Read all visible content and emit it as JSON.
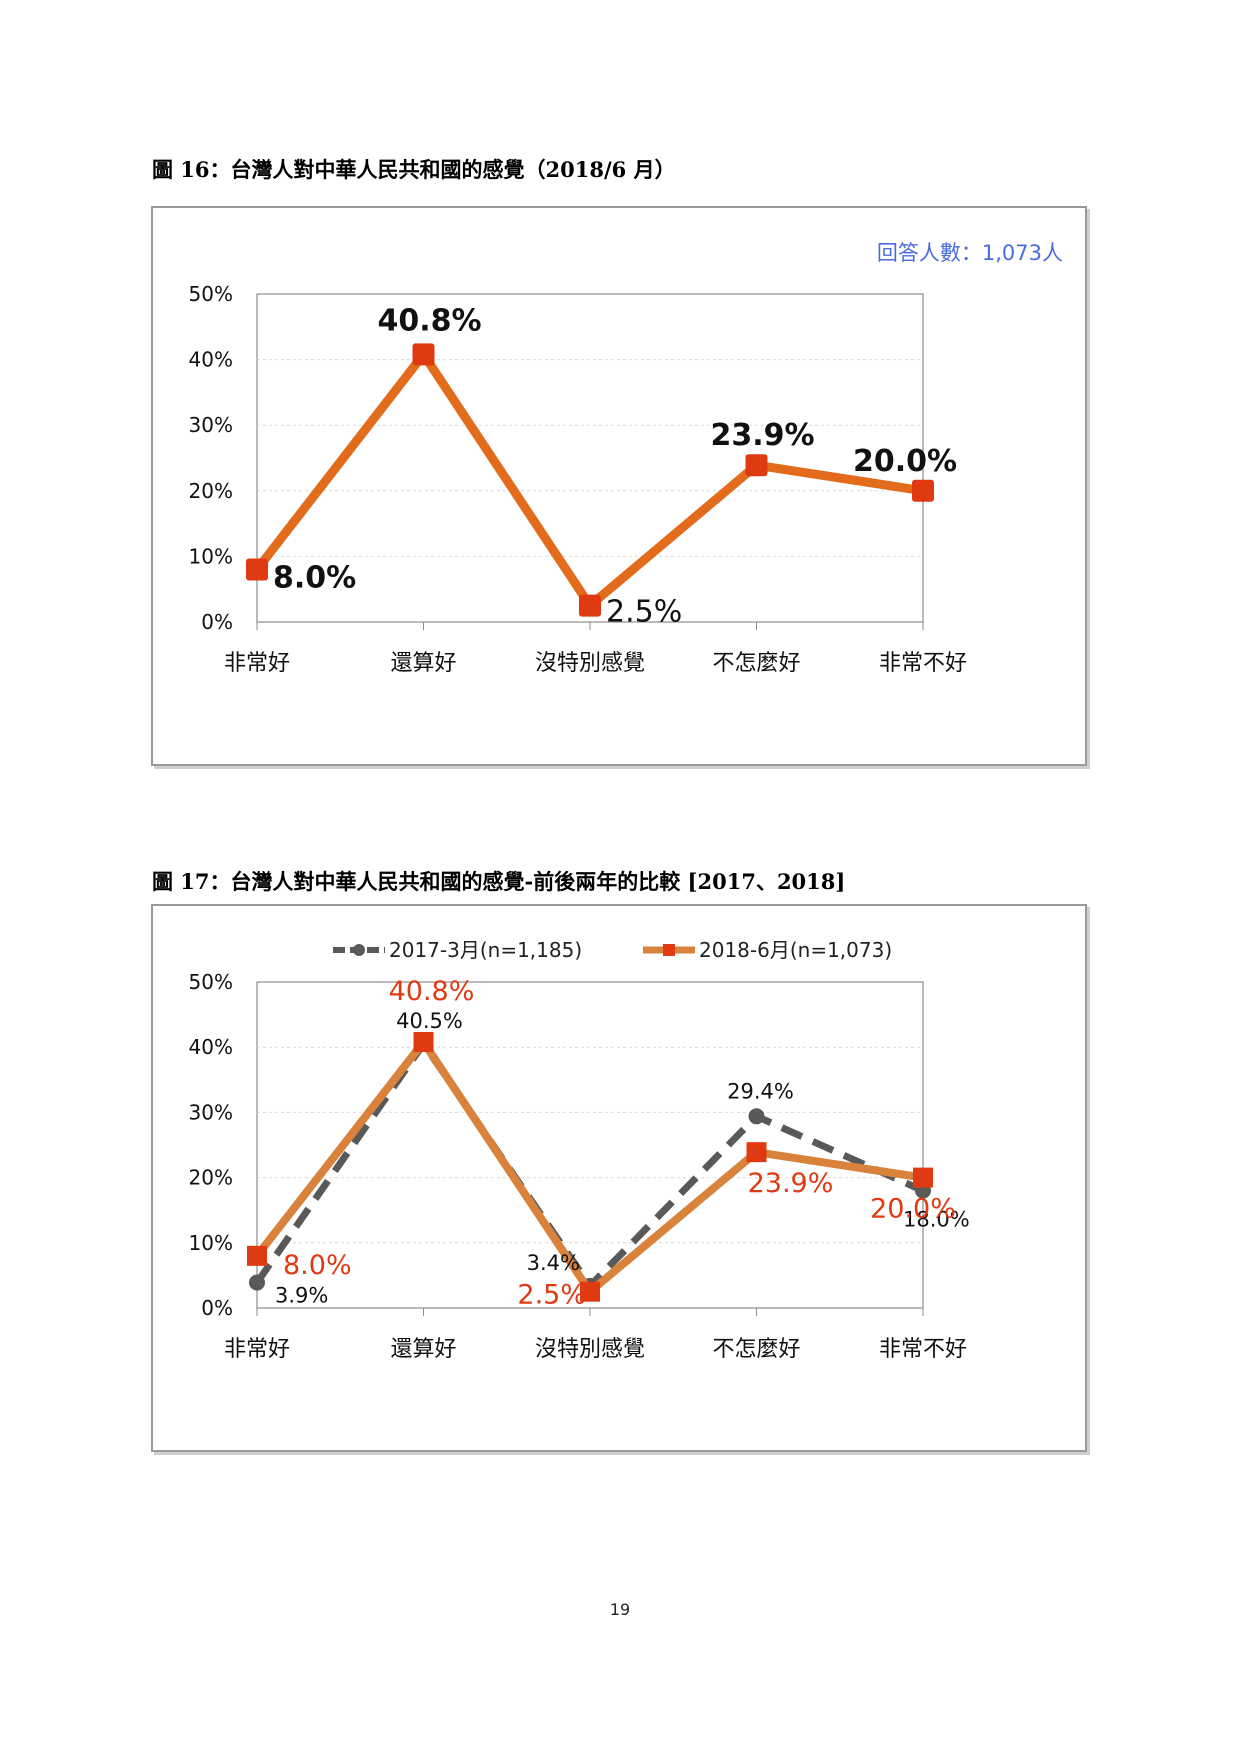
{
  "page_number": "19",
  "figures": [
    {
      "title": "圖 16：台灣人對中華人民共和國的感覺（2018/6 月）",
      "note": "回答人數：1,073人"
    },
    {
      "title": "圖 17：台灣人對中華人民共和國的感覺-前後兩年的比較 [2017、2018]"
    }
  ],
  "colors": {
    "orange_line": "#E36C1C",
    "orange_line_2": "#D9823C",
    "marker_red": "#E03A12",
    "gray_dash": "#595959",
    "note_blue": "#4A6CE0",
    "label_red": "#E03A12",
    "grid": "#d9d9d9",
    "axis": "#8c8c8c"
  },
  "chart_data": [
    {
      "type": "line",
      "title": "",
      "categories": [
        "非常好",
        "還算好",
        "沒特別感覺",
        "不怎麼好",
        "非常不好"
      ],
      "series": [
        {
          "values": [
            8.0,
            40.8,
            2.5,
            23.9,
            20.0
          ],
          "labels": [
            "8.0%",
            "40.8%",
            "2.5%",
            "23.9%",
            "20.0%"
          ]
        }
      ],
      "yticks": [
        "0%",
        "10%",
        "20%",
        "30%",
        "40%",
        "50%"
      ],
      "ylim": [
        0,
        50
      ],
      "grid": true,
      "legend": "none"
    },
    {
      "type": "line",
      "title": "",
      "categories": [
        "非常好",
        "還算好",
        "沒特別感覺",
        "不怎麼好",
        "非常不好"
      ],
      "series": [
        {
          "name": "2017-3月(n=1,185)",
          "values": [
            3.9,
            40.5,
            3.4,
            29.4,
            18.0
          ],
          "labels": [
            "3.9%",
            "40.5%",
            "3.4%",
            "29.4%",
            "18.0%"
          ]
        },
        {
          "name": "2018-6月(n=1,073)",
          "values": [
            8.0,
            40.8,
            2.5,
            23.9,
            20.0
          ],
          "labels": [
            "8.0%",
            "40.8%",
            "2.5%",
            "23.9%",
            "20.0%"
          ]
        }
      ],
      "yticks": [
        "0%",
        "10%",
        "20%",
        "30%",
        "40%",
        "50%"
      ],
      "ylim": [
        0,
        50
      ],
      "grid": true,
      "legend": "top"
    }
  ]
}
